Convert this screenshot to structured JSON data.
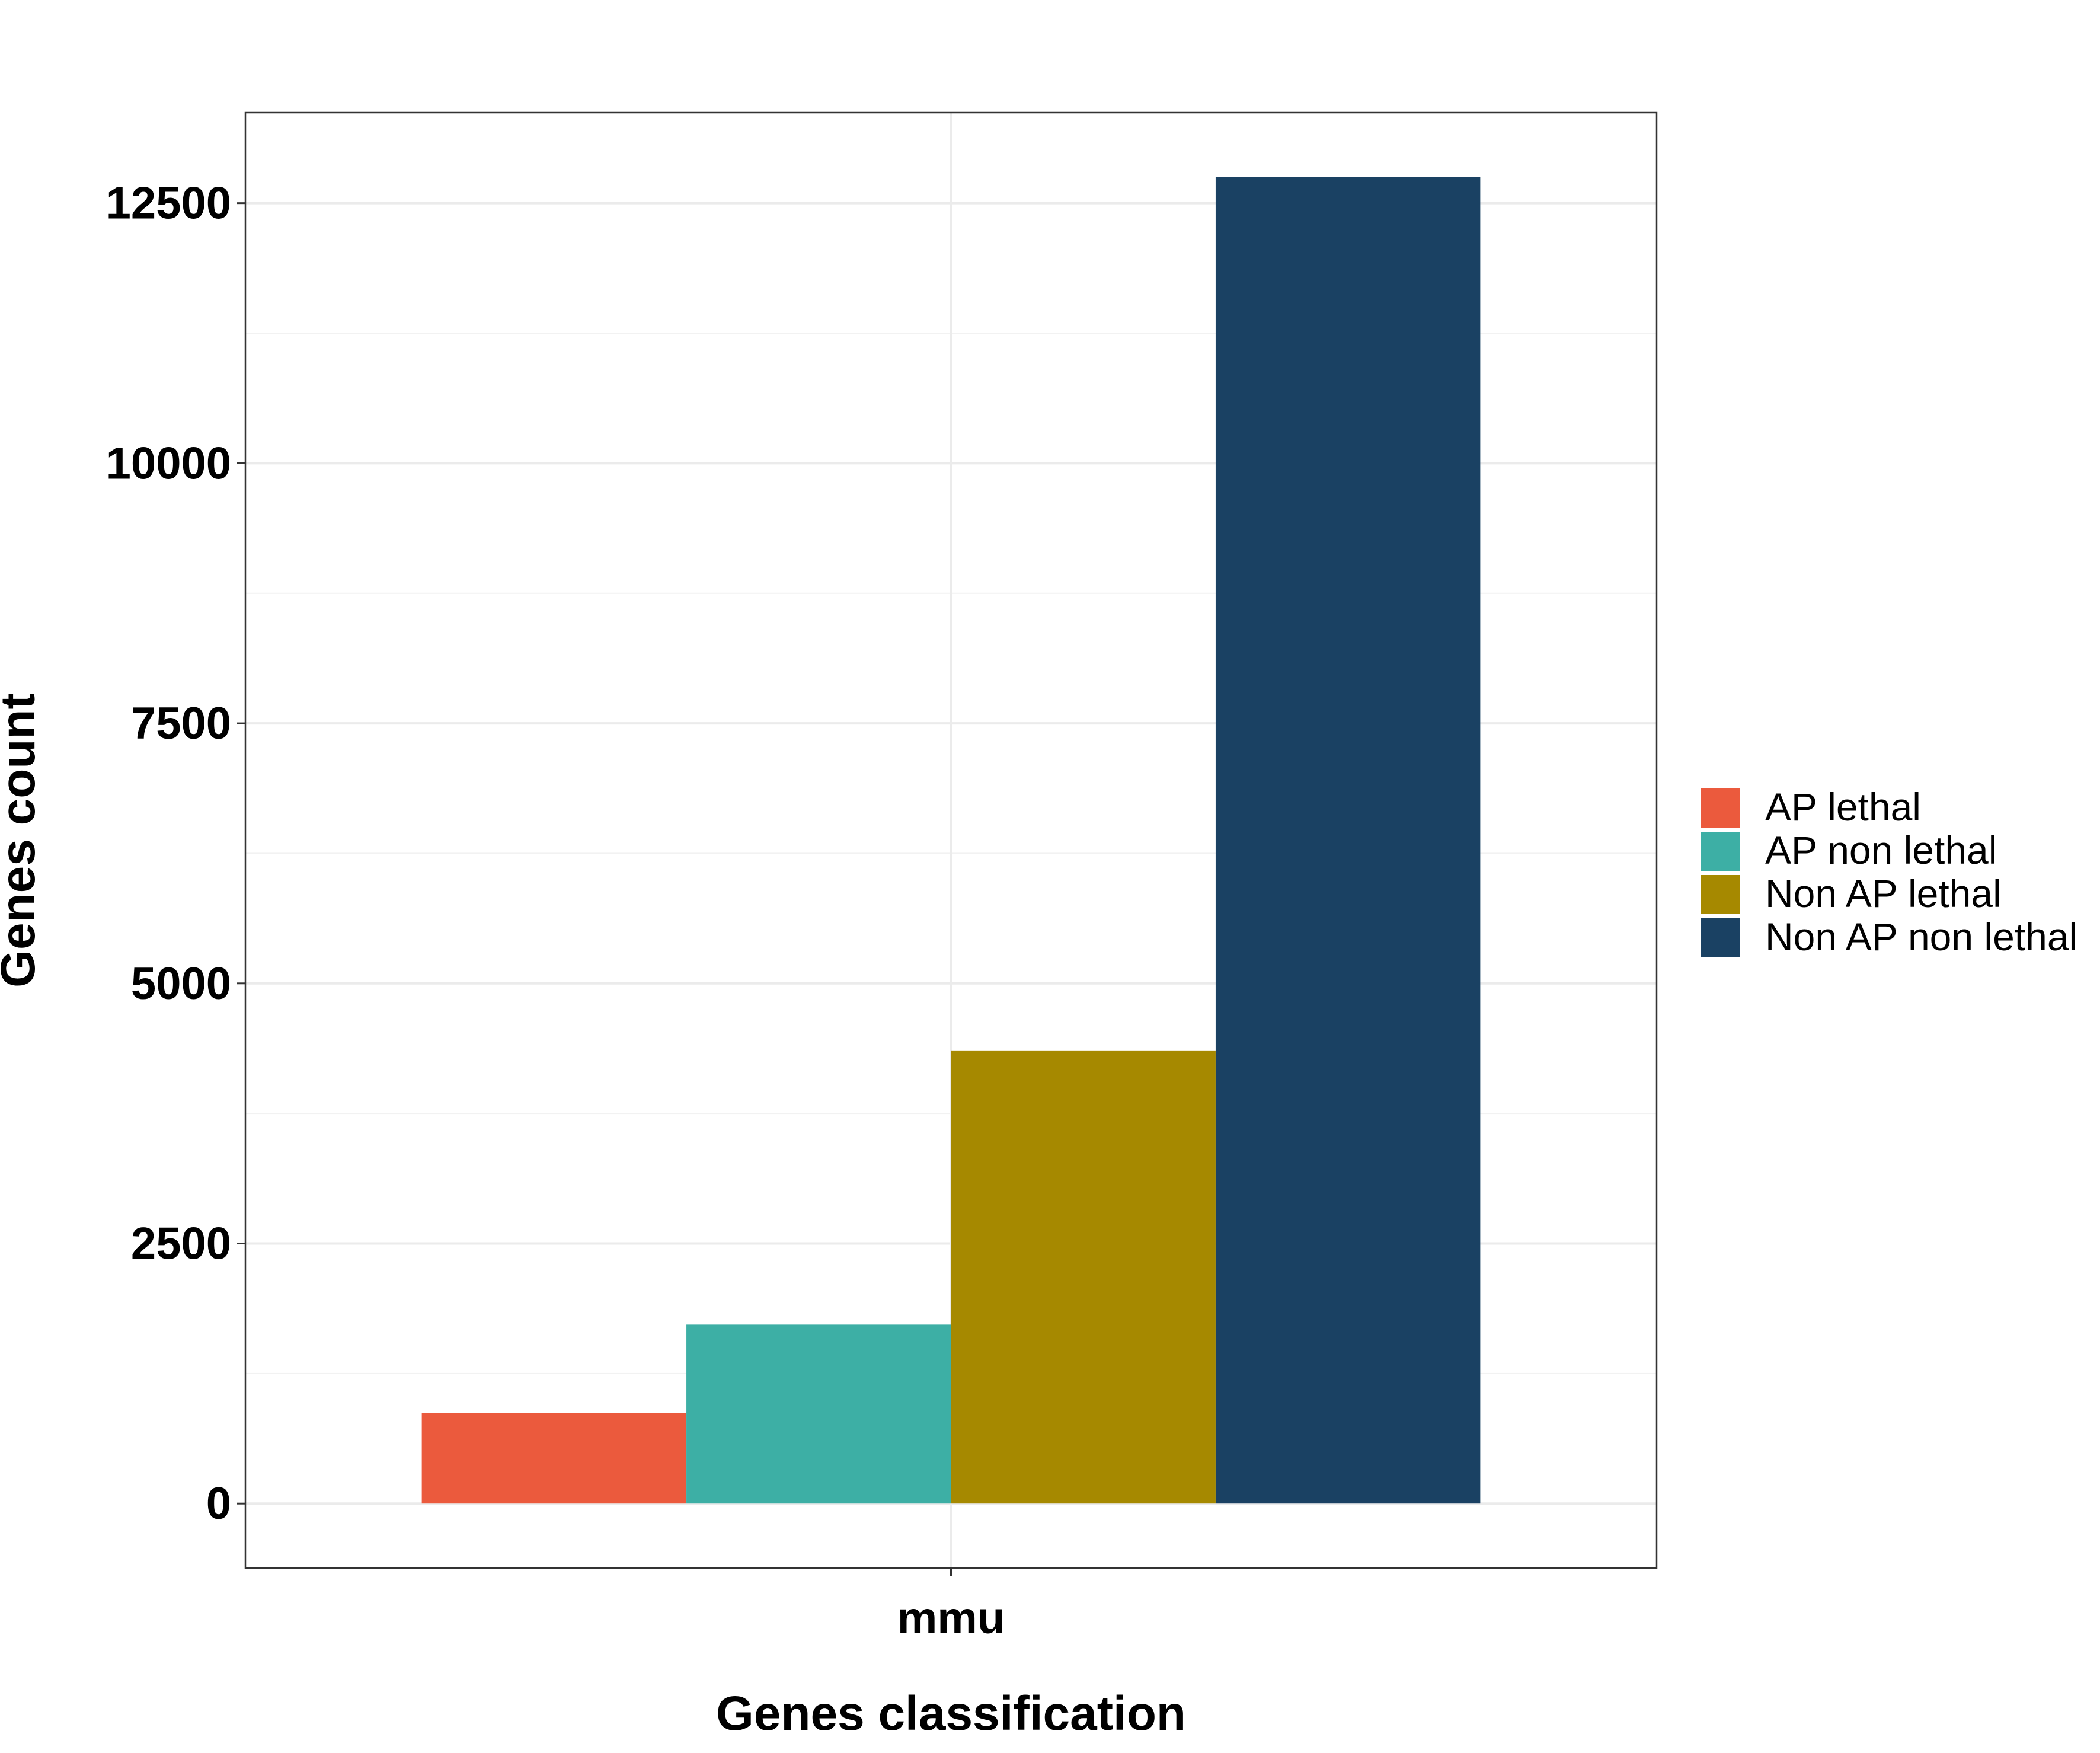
{
  "chart_data": {
    "type": "bar",
    "title": "",
    "xlabel": "Genes classification",
    "ylabel": "Genes count",
    "categories": [
      "mmu"
    ],
    "series": [
      {
        "name": "AP lethal",
        "color": "#EB5A3D",
        "values": [
          870
        ]
      },
      {
        "name": "AP non lethal",
        "color": "#3DAFA5",
        "values": [
          1720
        ]
      },
      {
        "name": "Non AP lethal",
        "color": "#A68900",
        "values": [
          4350
        ]
      },
      {
        "name": "Non AP non lethal",
        "color": "#1A4163",
        "values": [
          12750
        ]
      }
    ],
    "ylim": [
      -620,
      13370
    ],
    "yticks": [
      0,
      2500,
      5000,
      7500,
      10000,
      12500
    ],
    "ytick_labels": [
      "0",
      "2500",
      "5000",
      "7500",
      "10000",
      "12500"
    ],
    "grid": true,
    "legend": "right",
    "colors": {
      "background": "#FFFFFF",
      "grid": "#EBEBEB",
      "border": "#333333"
    }
  }
}
